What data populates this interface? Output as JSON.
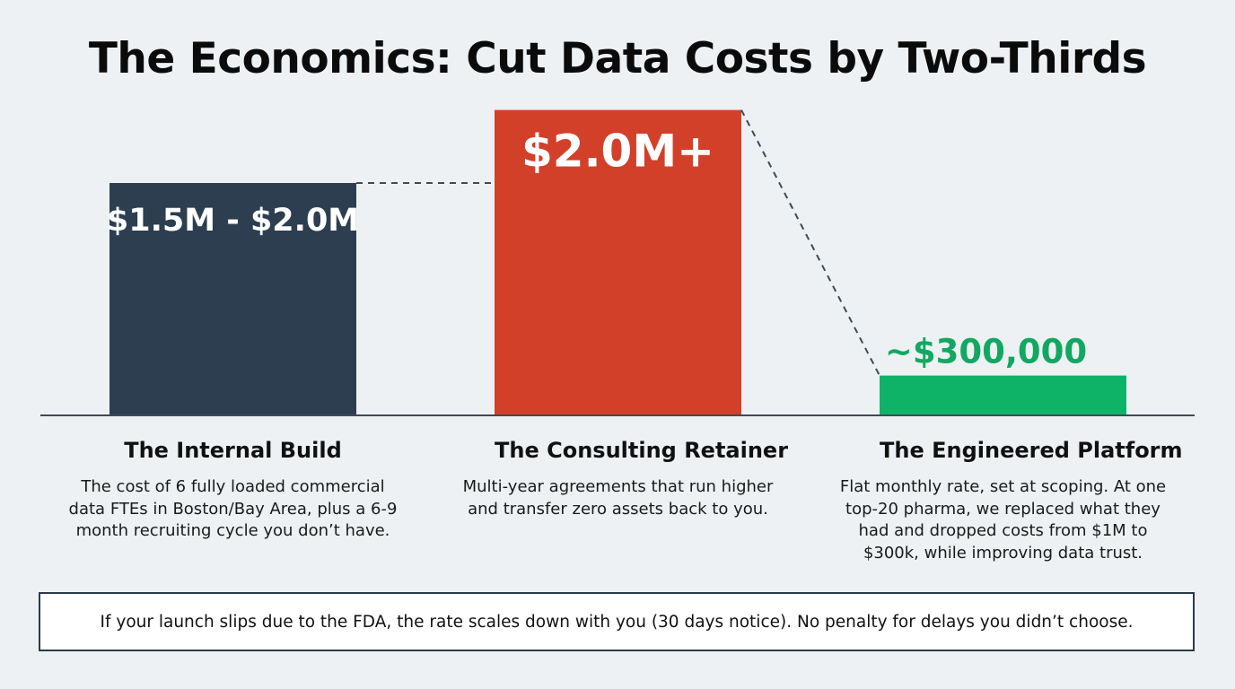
{
  "title": "The Economics: Cut Data Costs by Two-Thirds",
  "colors": {
    "background": "#eef1f3",
    "internal_build": "#2c3e50",
    "consulting_retainer": "#d2402a",
    "engineered_platform": "#0fb368",
    "platform_label": "#12a862",
    "baseline": "#3e4a57",
    "connector": "#3e4a57"
  },
  "chart_data": {
    "type": "bar",
    "categories": [
      "The Internal Build",
      "The Consulting Retainer",
      "The Engineered Platform"
    ],
    "values": [
      1.75,
      2.3,
      0.3
    ],
    "value_labels": [
      "$1.5M - $2.0M",
      "$2.0M+",
      "~$300,000"
    ],
    "units": "USD millions",
    "ylim": [
      0,
      2.5
    ],
    "connectors": "dashed",
    "grid": false,
    "legend": "none",
    "descriptions": [
      "The cost of 6 fully loaded commercial\ndata FTEs in Boston/Bay Area, plus a 6-9\nmonth recruiting cycle you don’t have.",
      "Multi-year agreements that run higher\nand transfer zero assets back to you.",
      "Flat monthly rate, set at scoping. At one\ntop-20 pharma, we replaced what they\nhad and dropped costs from $1M to\n$300k, while improving data trust."
    ]
  },
  "footnote": "If your launch slips due to the FDA, the rate scales down with you (30 days notice). No penalty for delays you didn’t choose."
}
